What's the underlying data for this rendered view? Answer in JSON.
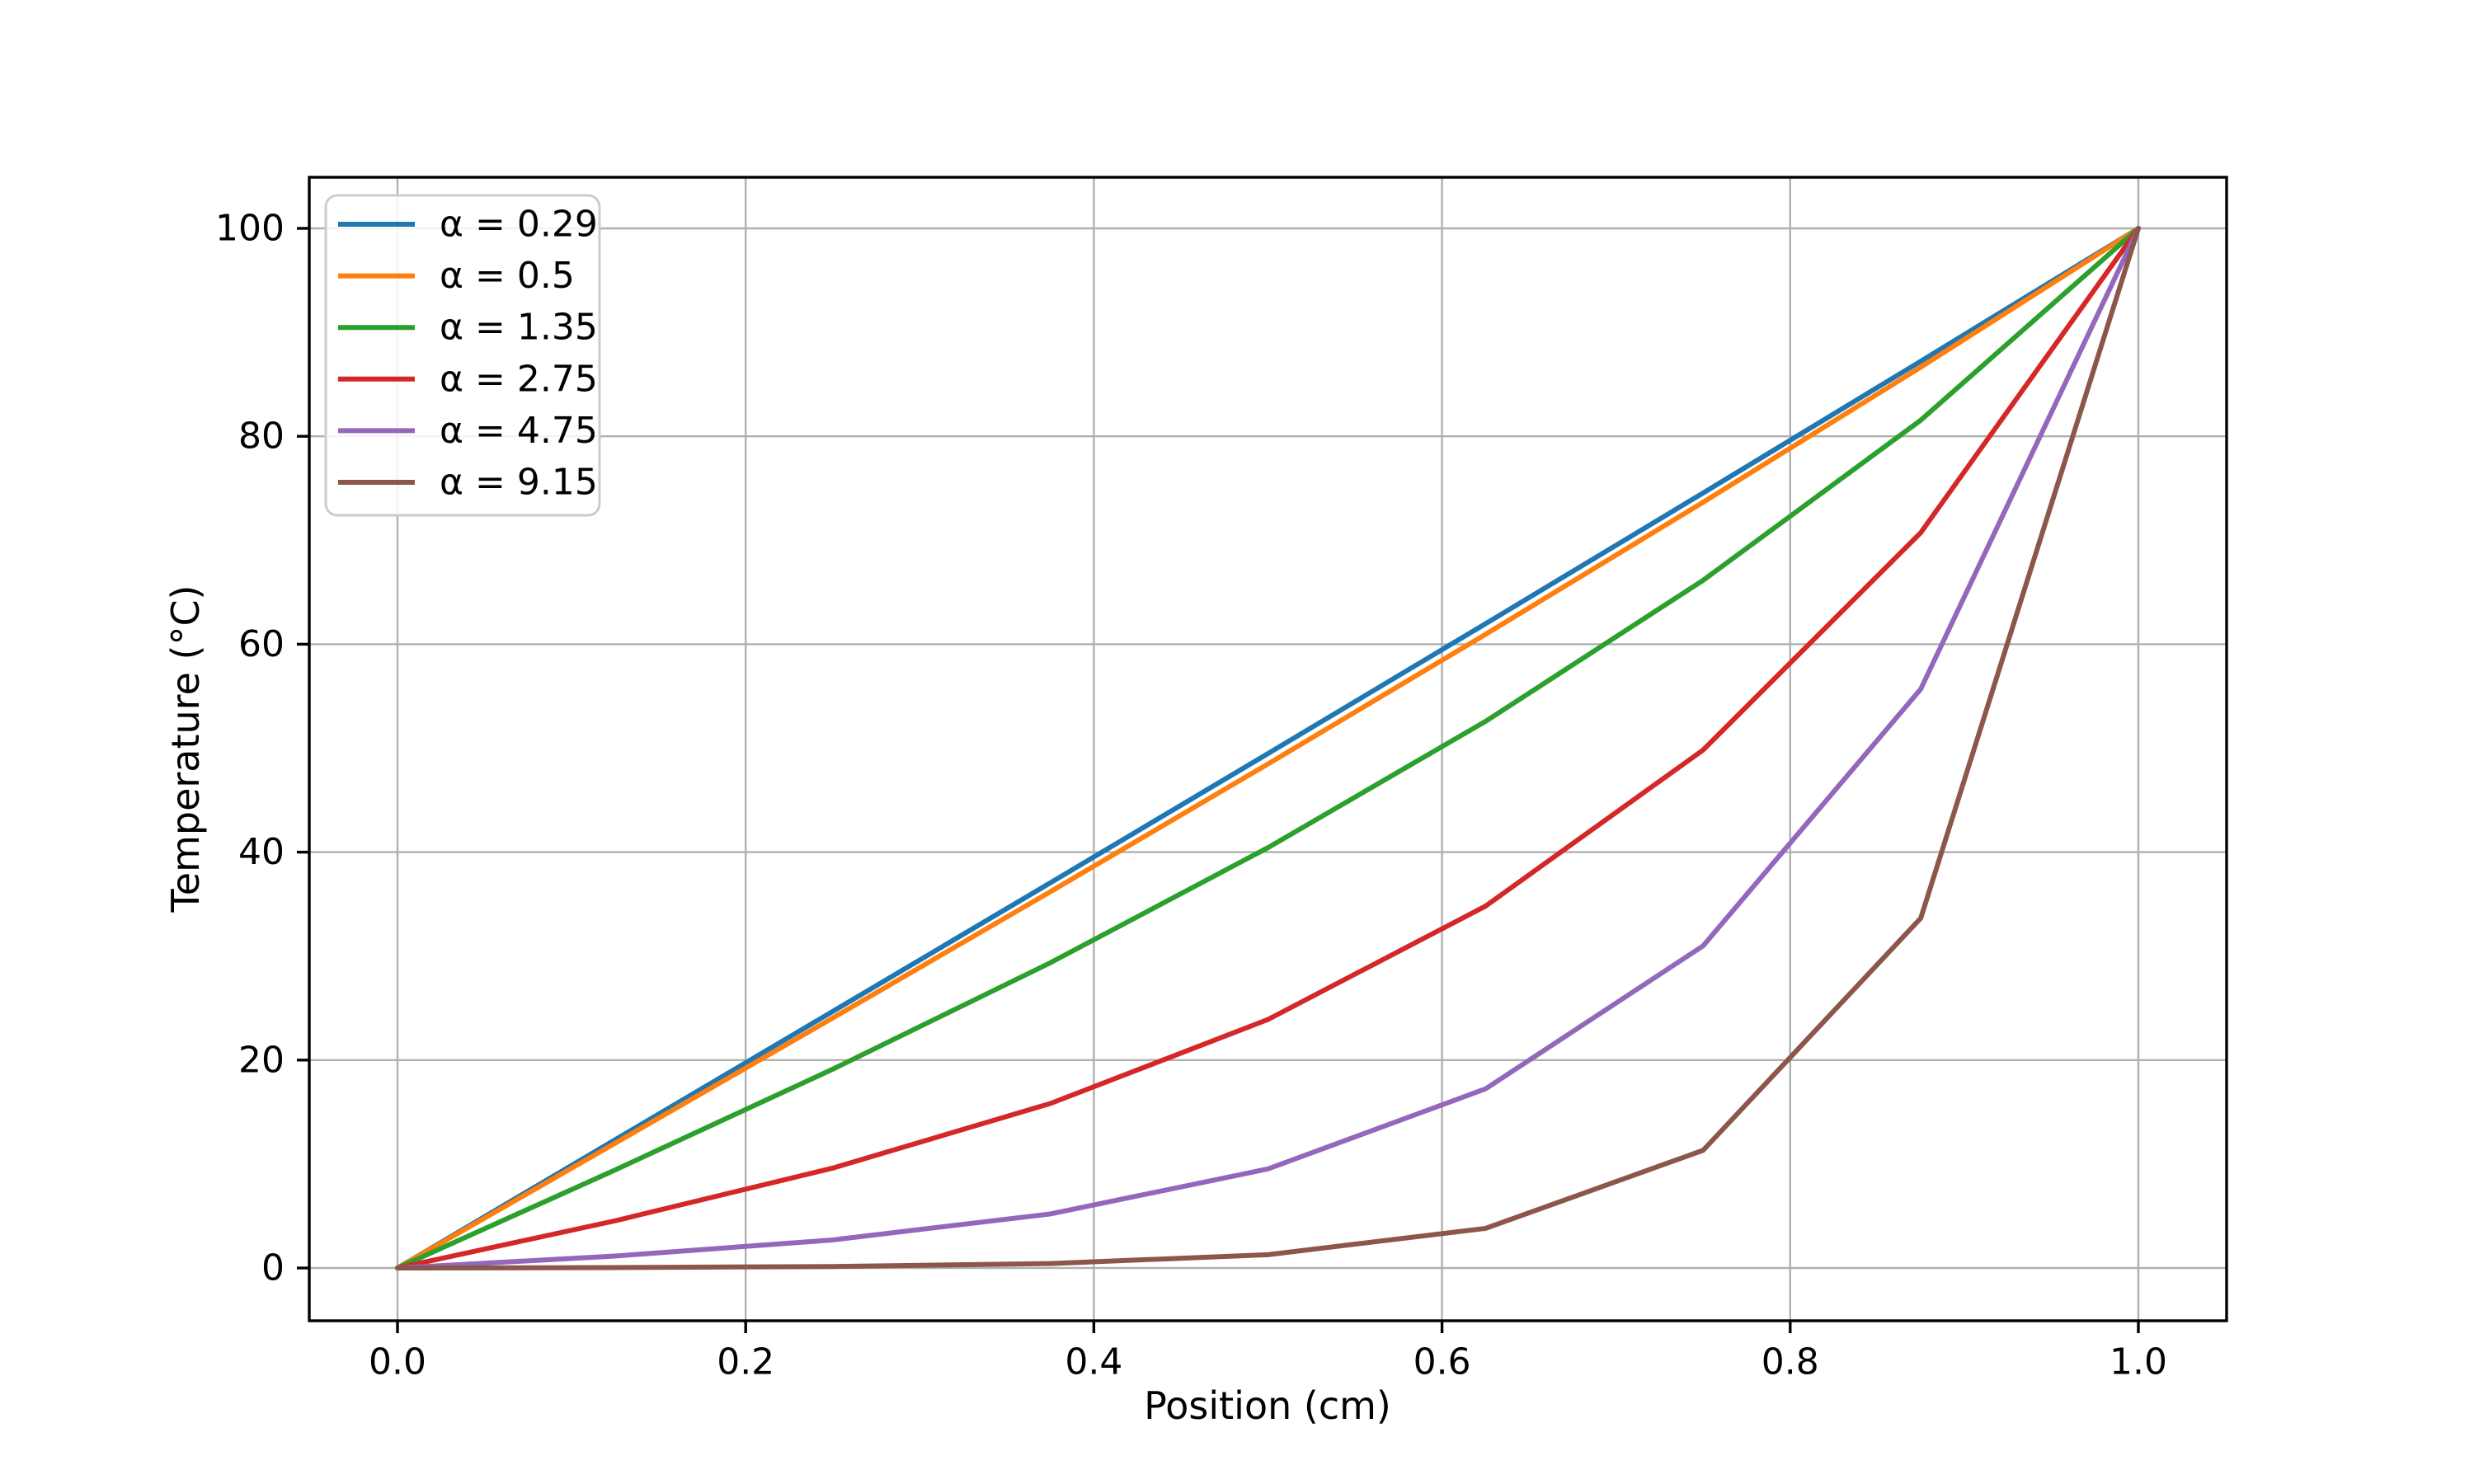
{
  "figure": {
    "xlabel": "Position (cm)",
    "ylabel": "Temperature (°C)"
  },
  "chart_data": {
    "type": "line",
    "title": "",
    "xlabel": "Position (cm)",
    "ylabel": "Temperature (°C)",
    "x": [
      0,
      0.125,
      0.25,
      0.375,
      0.5,
      0.625,
      0.75,
      0.875,
      1.0
    ],
    "series": [
      {
        "name": "α = 0.29",
        "color": "#1f77b4",
        "values": [
          0,
          12.33,
          24.68,
          37.05,
          49.48,
          61.97,
          74.55,
          87.22,
          100
        ]
      },
      {
        "name": "α = 0.5",
        "color": "#ff7f0e",
        "values": [
          0,
          12.0,
          24.05,
          36.19,
          48.48,
          60.95,
          73.66,
          86.65,
          100
        ]
      },
      {
        "name": "α = 1.35",
        "color": "#2ca02c",
        "values": [
          0,
          9.43,
          19.12,
          29.36,
          40.43,
          52.58,
          66.15,
          81.55,
          100
        ]
      },
      {
        "name": "α = 2.75",
        "color": "#d62728",
        "values": [
          0,
          4.54,
          9.61,
          15.82,
          23.9,
          34.81,
          49.83,
          70.73,
          100
        ]
      },
      {
        "name": "α = 4.75",
        "color": "#9467bd",
        "values": [
          0,
          1.15,
          2.7,
          5.2,
          9.53,
          17.23,
          30.99,
          55.69,
          100
        ]
      },
      {
        "name": "α = 9.15",
        "color": "#8c564b",
        "values": [
          0,
          0.04,
          0.14,
          0.43,
          1.28,
          3.81,
          11.32,
          33.65,
          100
        ]
      }
    ],
    "x_ticks": [
      0.0,
      0.2,
      0.4,
      0.6,
      0.8,
      1.0
    ],
    "x_tick_labels": [
      "0.0",
      "0.2",
      "0.4",
      "0.6",
      "0.8",
      "1.0"
    ],
    "y_ticks": [
      0,
      20,
      40,
      60,
      80,
      100
    ],
    "y_tick_labels": [
      "0",
      "20",
      "40",
      "60",
      "80",
      "100"
    ],
    "xlim": [
      -0.0507,
      1.0507
    ],
    "ylim": [
      -5.07,
      105.07
    ],
    "grid": true,
    "legend_position": "upper left",
    "colors": {
      "grid": "#b0b0b0",
      "spine": "#000000",
      "legend_border": "#cccccc",
      "legend_background": "rgba(255,255,255,0.85)"
    }
  }
}
